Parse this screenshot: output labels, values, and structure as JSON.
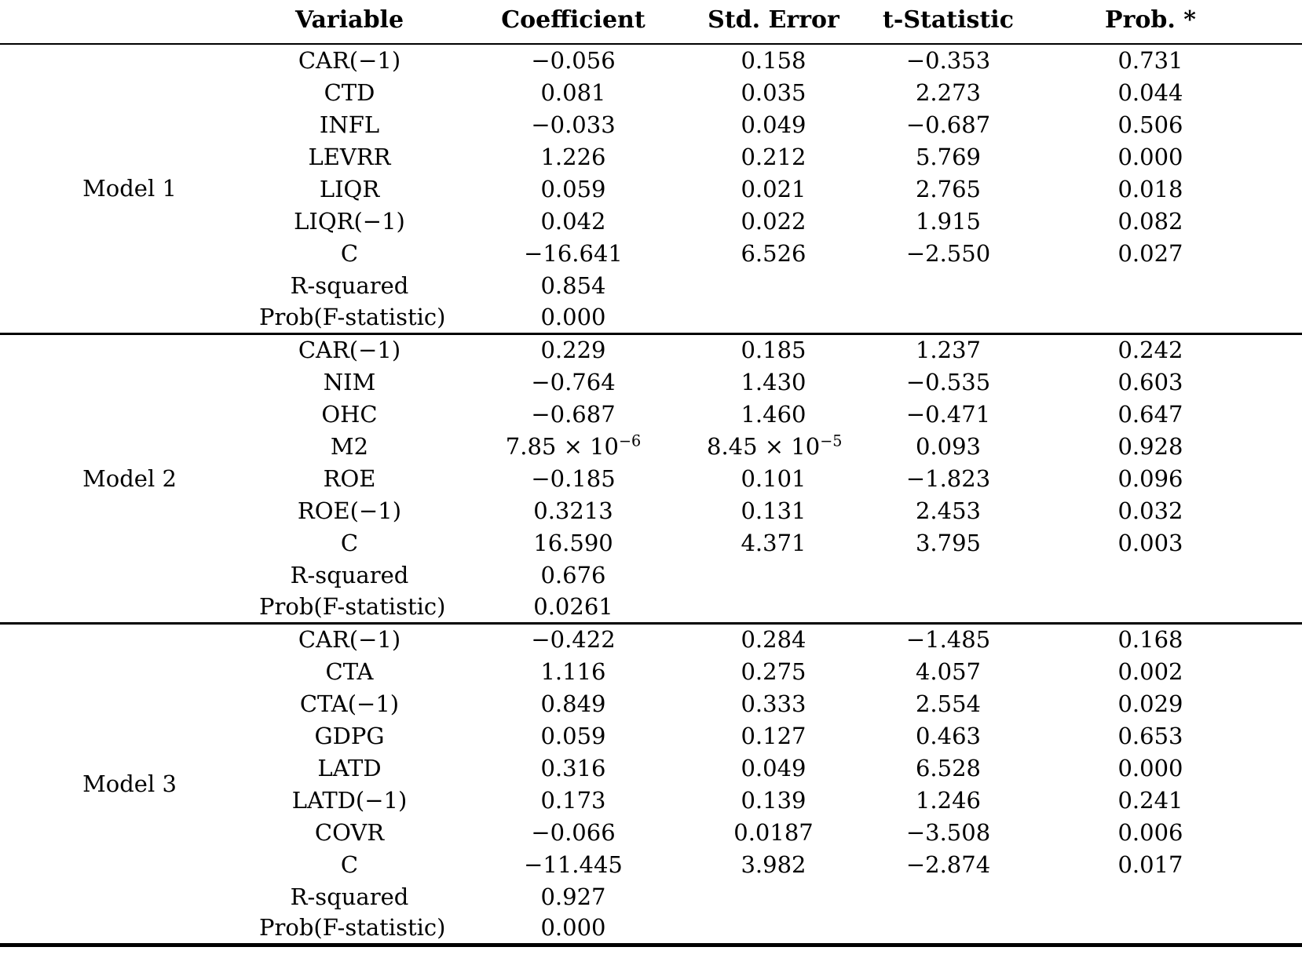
{
  "colors": {
    "text": "#000000",
    "background": "#ffffff",
    "rule": "#000000"
  },
  "table": {
    "columns": [
      "Variable",
      "Coefficient",
      "Std. Error",
      "t-Statistic",
      "Prob. *"
    ],
    "column_keys": [
      "variable",
      "coefficient",
      "std-error",
      "t-statistic",
      "prob"
    ],
    "models": [
      {
        "label": "Model 1",
        "rows": [
          [
            "CAR(−1)",
            "−0.056",
            "0.158",
            "−0.353",
            "0.731"
          ],
          [
            "CTD",
            "0.081",
            "0.035",
            "2.273",
            "0.044"
          ],
          [
            "INFL",
            "−0.033",
            "0.049",
            "−0.687",
            "0.506"
          ],
          [
            "LEVRR",
            "1.226",
            "0.212",
            "5.769",
            "0.000"
          ],
          [
            "LIQR",
            "0.059",
            "0.021",
            "2.765",
            "0.018"
          ],
          [
            "LIQR(−1)",
            "0.042",
            "0.022",
            "1.915",
            "0.082"
          ],
          [
            "C",
            "−16.641",
            "6.526",
            "−2.550",
            "0.027"
          ],
          [
            "R-squared",
            "0.854",
            "",
            "",
            ""
          ],
          [
            "Prob(F-statistic)",
            "0.000",
            "",
            "",
            ""
          ]
        ]
      },
      {
        "label": "Model 2",
        "rows": [
          [
            "CAR(−1)",
            "0.229",
            "0.185",
            "1.237",
            "0.242"
          ],
          [
            "NIM",
            "−0.764",
            "1.430",
            "−0.535",
            "0.603"
          ],
          [
            "OHC",
            "−0.687",
            "1.460",
            "−0.471",
            "0.647"
          ],
          [
            "M2",
            "7.85 × 10^−6",
            "8.45 × 10^−5",
            "0.093",
            "0.928"
          ],
          [
            "ROE",
            "−0.185",
            "0.101",
            "−1.823",
            "0.096"
          ],
          [
            "ROE(−1)",
            "0.3213",
            "0.131",
            "2.453",
            "0.032"
          ],
          [
            "C",
            "16.590",
            "4.371",
            "3.795",
            "0.003"
          ],
          [
            "R-squared",
            "0.676",
            "",
            "",
            ""
          ],
          [
            "Prob(F-statistic)",
            "0.0261",
            "",
            "",
            ""
          ]
        ]
      },
      {
        "label": "Model 3",
        "rows": [
          [
            "CAR(−1)",
            "−0.422",
            "0.284",
            "−1.485",
            "0.168"
          ],
          [
            "CTA",
            "1.116",
            "0.275",
            "4.057",
            "0.002"
          ],
          [
            "CTA(−1)",
            "0.849",
            "0.333",
            "2.554",
            "0.029"
          ],
          [
            "GDPG",
            "0.059",
            "0.127",
            "0.463",
            "0.653"
          ],
          [
            "LATD",
            "0.316",
            "0.049",
            "6.528",
            "0.000"
          ],
          [
            "LATD(−1)",
            "0.173",
            "0.139",
            "1.246",
            "0.241"
          ],
          [
            "COVR",
            "−0.066",
            "0.0187",
            "−3.508",
            "0.006"
          ],
          [
            "C",
            "−11.445",
            "3.982",
            "−2.874",
            "0.017"
          ],
          [
            "R-squared",
            "0.927",
            "",
            "",
            ""
          ],
          [
            "Prob(F-statistic)",
            "0.000",
            "",
            "",
            ""
          ]
        ]
      }
    ]
  }
}
